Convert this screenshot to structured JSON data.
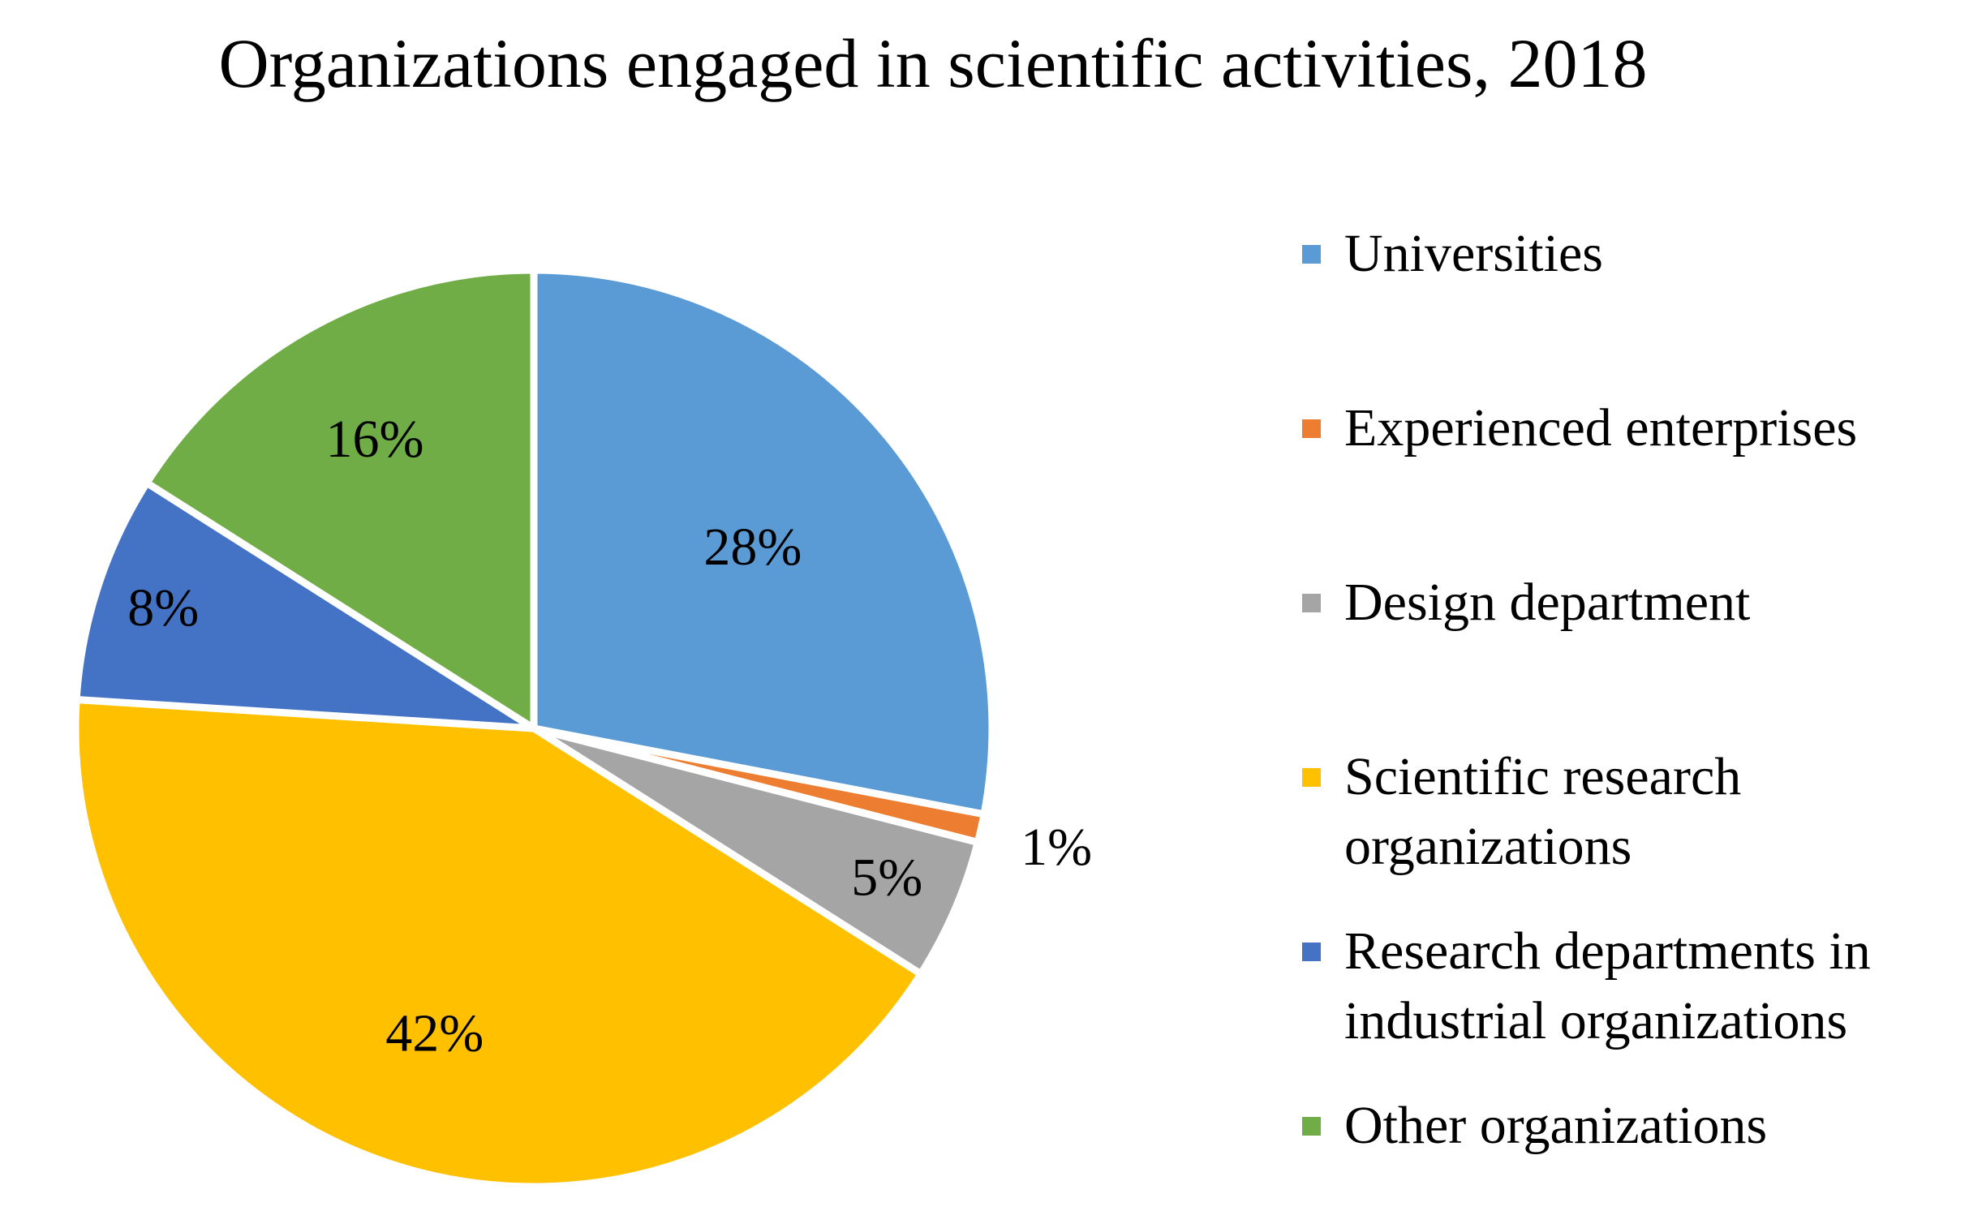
{
  "chart_data": {
    "type": "pie",
    "title": "Organizations engaged in scientific activities, 2018",
    "slices": [
      {
        "name": "Universities",
        "value": 28,
        "label": "28%",
        "color": "#5B9BD5"
      },
      {
        "name": "Experienced enterprises",
        "value": 1,
        "label": "1%",
        "color": "#ED7D31"
      },
      {
        "name": "Design department",
        "value": 5,
        "label": "5%",
        "color": "#A5A5A5"
      },
      {
        "name": " Scientific research organizations",
        "value": 42,
        "label": "42%",
        "color": "#FFC000"
      },
      {
        "name": "Research departments in industrial organizations",
        "value": 8,
        "label": "8%",
        "color": "#4472C4"
      },
      {
        "name": " Other organizations",
        "value": 16,
        "label": "16%",
        "color": "#70AD47"
      }
    ],
    "legend": {
      "position": "right",
      "entries": [
        "Universities",
        "Experienced enterprises",
        "Design department",
        " Scientific research\norganizations",
        "Research departments in\nindustrial organizations",
        " Other organizations"
      ]
    }
  }
}
